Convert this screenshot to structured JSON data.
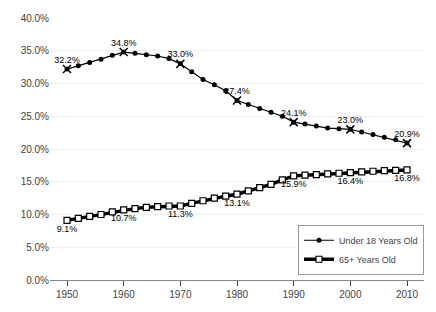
{
  "chart_data": {
    "type": "line",
    "series": [
      {
        "name": "Under 18 Years Old",
        "color": "#000000",
        "marker": "circle",
        "line_style": "solid",
        "x": [
          1950,
          1952,
          1954,
          1956,
          1958,
          1960,
          1962,
          1964,
          1966,
          1968,
          1970,
          1972,
          1974,
          1976,
          1978,
          1980,
          1982,
          1984,
          1986,
          1988,
          1990,
          1992,
          1994,
          1996,
          1998,
          2000,
          2002,
          2004,
          2006,
          2008,
          2010
        ],
        "values": [
          32.2,
          32.7,
          33.2,
          33.7,
          34.3,
          34.8,
          34.6,
          34.4,
          34.2,
          33.8,
          33.0,
          31.8,
          30.6,
          29.8,
          28.9,
          27.4,
          26.8,
          26.2,
          25.6,
          25.0,
          24.1,
          23.8,
          23.5,
          23.2,
          23.1,
          23.0,
          22.6,
          22.2,
          21.8,
          21.4,
          20.9
        ],
        "value_labels": [
          "32.2%",
          null,
          null,
          null,
          null,
          "34.8%",
          null,
          null,
          null,
          null,
          "33.0%",
          null,
          null,
          null,
          null,
          "27.4%",
          null,
          null,
          null,
          null,
          "24.1%",
          null,
          null,
          null,
          null,
          "23.0%",
          null,
          null,
          null,
          null,
          "20.9%"
        ]
      },
      {
        "name": "65+ Years Old",
        "color": "#000000",
        "marker": "square",
        "line_style": "solid",
        "x": [
          1950,
          1952,
          1954,
          1956,
          1958,
          1960,
          1962,
          1964,
          1966,
          1968,
          1970,
          1972,
          1974,
          1976,
          1978,
          1980,
          1982,
          1984,
          1986,
          1988,
          1990,
          1992,
          1994,
          1996,
          1998,
          2000,
          2002,
          2004,
          2006,
          2008,
          2010
        ],
        "values": [
          9.1,
          9.4,
          9.7,
          10.0,
          10.4,
          10.7,
          10.9,
          11.1,
          11.2,
          11.3,
          11.3,
          11.7,
          12.1,
          12.5,
          12.8,
          13.1,
          13.6,
          14.1,
          14.6,
          15.3,
          15.9,
          16.0,
          16.1,
          16.2,
          16.3,
          16.4,
          16.5,
          16.6,
          16.7,
          16.75,
          16.8
        ],
        "value_labels": [
          "9.1%",
          null,
          null,
          null,
          null,
          "10.7%",
          null,
          null,
          null,
          null,
          "11.3%",
          null,
          null,
          null,
          null,
          "13.1%",
          null,
          null,
          null,
          null,
          "15.9%",
          null,
          null,
          null,
          null,
          "16.4%",
          null,
          null,
          null,
          null,
          "16.8%"
        ]
      },
      {
        "color": "#000000",
        "marker": "x",
        "line_style": "none",
        "x": [
          1950,
          1960,
          1970,
          1980,
          1990,
          2000,
          2010
        ],
        "values": [
          32.2,
          34.8,
          33.0,
          27.4,
          24.1,
          23.0,
          20.9
        ]
      }
    ],
    "xlim": [
      1947,
      2013
    ],
    "xticks": [
      1950,
      1960,
      1970,
      1980,
      1990,
      2000,
      2010
    ],
    "ylim": [
      0.0,
      40.0
    ],
    "yticks": [
      {
        "value": 0.0,
        "label": "0.0%"
      },
      {
        "value": 5.0,
        "label": "5.0%"
      },
      {
        "value": 10.0,
        "label": "10.0%"
      },
      {
        "value": 15.0,
        "label": "15.0%"
      },
      {
        "value": 20.0,
        "label": "20.0%"
      },
      {
        "value": 25.0,
        "label": "25.0%"
      },
      {
        "value": 30.0,
        "label": "30.0%"
      },
      {
        "value": 35.0,
        "label": "35.0%"
      },
      {
        "value": 40.0,
        "label": "40.0%"
      }
    ],
    "grid": "y",
    "legend": "lower right",
    "data_labels": true
  }
}
